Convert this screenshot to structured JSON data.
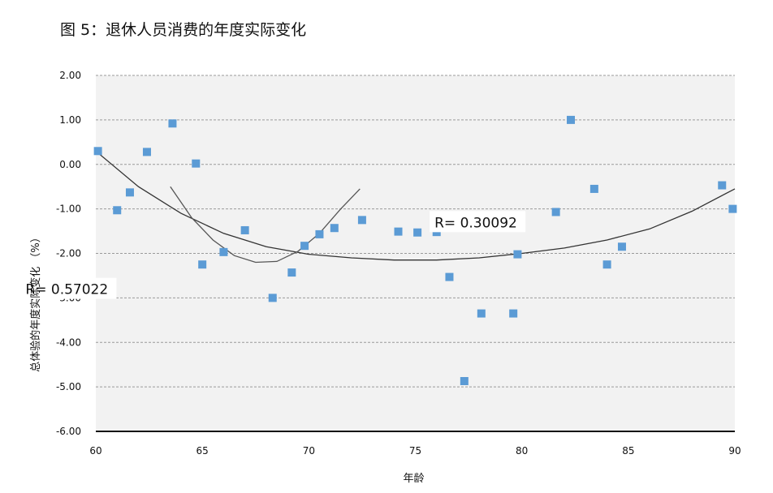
{
  "title": "图 5：退休人员消费的年度实际变化",
  "chart_data": {
    "type": "scatter",
    "title": "图 5：退休人员消费的年度实际变化",
    "xlabel": "年龄",
    "ylabel": "总体验的年度实际变化 （%）",
    "xlim": [
      60,
      90
    ],
    "ylim": [
      -6,
      2
    ],
    "x_ticks": [
      60,
      65,
      70,
      75,
      80,
      85,
      90
    ],
    "y_ticks": [
      2,
      1,
      0,
      -1,
      -2,
      -3,
      -4,
      -5,
      -6
    ],
    "y_tick_labels": [
      "2.00",
      "1.00",
      "0.00",
      "-1.00",
      "-2.00",
      "-3.00",
      "-4.00",
      "-5.00",
      "-6.00"
    ],
    "grid": true,
    "marker_color": "#5b9bd5",
    "points": [
      {
        "x": 60.1,
        "y": 0.3
      },
      {
        "x": 61.0,
        "y": -1.03
      },
      {
        "x": 61.6,
        "y": -0.63
      },
      {
        "x": 62.4,
        "y": 0.28
      },
      {
        "x": 63.6,
        "y": 0.92
      },
      {
        "x": 64.7,
        "y": 0.02
      },
      {
        "x": 65.0,
        "y": -2.25
      },
      {
        "x": 66.0,
        "y": -1.97
      },
      {
        "x": 67.0,
        "y": -1.48
      },
      {
        "x": 68.3,
        "y": -3.0
      },
      {
        "x": 69.2,
        "y": -2.43
      },
      {
        "x": 69.8,
        "y": -1.83
      },
      {
        "x": 70.5,
        "y": -1.57
      },
      {
        "x": 71.2,
        "y": -1.43
      },
      {
        "x": 72.5,
        "y": -1.25
      },
      {
        "x": 74.2,
        "y": -1.51
      },
      {
        "x": 75.1,
        "y": -1.53
      },
      {
        "x": 76.0,
        "y": -1.52
      },
      {
        "x": 76.6,
        "y": -2.53
      },
      {
        "x": 77.3,
        "y": -4.87
      },
      {
        "x": 78.1,
        "y": -3.35
      },
      {
        "x": 79.6,
        "y": -3.35
      },
      {
        "x": 79.8,
        "y": -2.02
      },
      {
        "x": 81.6,
        "y": -1.07
      },
      {
        "x": 82.3,
        "y": 1.0
      },
      {
        "x": 83.4,
        "y": -0.55
      },
      {
        "x": 84.0,
        "y": -2.25
      },
      {
        "x": 84.7,
        "y": -1.85
      },
      {
        "x": 89.4,
        "y": -0.47
      },
      {
        "x": 89.9,
        "y": -1.0
      }
    ],
    "trendlines": [
      {
        "label": "R= 0.30092",
        "color": "#333333",
        "points": [
          [
            60,
            0.3
          ],
          [
            62,
            -0.5
          ],
          [
            64,
            -1.1
          ],
          [
            66,
            -1.55
          ],
          [
            68,
            -1.85
          ],
          [
            70,
            -2.02
          ],
          [
            72,
            -2.1
          ],
          [
            74,
            -2.15
          ],
          [
            76,
            -2.15
          ],
          [
            78,
            -2.1
          ],
          [
            80,
            -2.0
          ],
          [
            82,
            -1.88
          ],
          [
            84,
            -1.7
          ],
          [
            86,
            -1.45
          ],
          [
            88,
            -1.05
          ],
          [
            90,
            -0.55
          ]
        ]
      },
      {
        "label": "R= 0.57022",
        "color": "#555555",
        "points": [
          [
            63.5,
            -0.5
          ],
          [
            64.5,
            -1.2
          ],
          [
            65.5,
            -1.7
          ],
          [
            66.5,
            -2.05
          ],
          [
            67.5,
            -2.2
          ],
          [
            68.5,
            -2.18
          ],
          [
            69.5,
            -1.95
          ],
          [
            70.5,
            -1.55
          ],
          [
            71.5,
            -1.0
          ],
          [
            72.4,
            -0.55
          ]
        ]
      }
    ]
  }
}
